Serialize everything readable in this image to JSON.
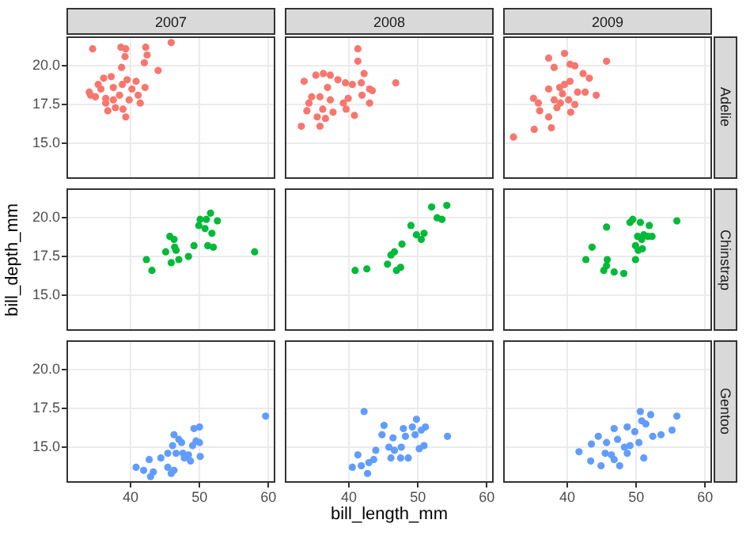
{
  "chart_data": [
    {
      "type": "scatter",
      "title": "2007",
      "marker": "circle",
      "color": "#f8766d",
      "grid": true,
      "tick_labels": "y",
      "xlim": [
        30.7,
        61
      ],
      "ylim": [
        12.7,
        21.9
      ],
      "xticks": [
        40,
        50,
        60
      ],
      "yticks": [
        {
          "value": 15,
          "label": "15.0"
        },
        {
          "value": 17.5,
          "label": "17.5"
        },
        {
          "value": 20,
          "label": "20.0"
        }
      ],
      "x": [
        34.5,
        38.6,
        39.3,
        39.2,
        38.7,
        42.2,
        42.4,
        42.0,
        45.9,
        44.0,
        34.0,
        34.2,
        35.3,
        36.1,
        37.2,
        35.7,
        36.4,
        37.5,
        36.7,
        37.8,
        38.9,
        39.3,
        38.4,
        39.8,
        38.8,
        40.2,
        40.8,
        41.1,
        42.1,
        41.4,
        36.4,
        37.5,
        39.5,
        34.9
      ],
      "values": [
        21.1,
        21.2,
        21.1,
        20.6,
        19.9,
        21.2,
        20.7,
        20.2,
        21.5,
        19.7,
        18.3,
        18.1,
        18.8,
        19.2,
        19.3,
        18.5,
        17.9,
        18.6,
        17.1,
        17.3,
        17.2,
        16.7,
        18.1,
        17.8,
        18.8,
        18.5,
        19.0,
        18.1,
        18.6,
        17.6,
        17.6,
        17.8,
        19.1,
        18.0
      ]
    },
    {
      "type": "scatter",
      "title": "2008",
      "marker": "circle",
      "color": "#f8766d",
      "grid": true,
      "tick_labels": false,
      "xlim": [
        30.7,
        61
      ],
      "ylim": [
        12.7,
        21.9
      ],
      "xticks": [
        40,
        50,
        60
      ],
      "yticks": [
        15,
        17.5,
        20
      ],
      "x": [
        41.3,
        41.3,
        33.5,
        35.2,
        36.3,
        37.3,
        38.4,
        36.9,
        39.5,
        40.5,
        41.8,
        42.2,
        46.8,
        43.0,
        43.4,
        41.9,
        39.9,
        34.6,
        35.8,
        34.2,
        37.3,
        39.2,
        39.6,
        37.7,
        36.2,
        33.9,
        35.4,
        35.8,
        33.1,
        40.8,
        43.0,
        36.6
      ],
      "values": [
        21.1,
        20.3,
        19.0,
        19.4,
        19.5,
        19.4,
        19.1,
        18.6,
        18.9,
        18.8,
        18.9,
        19.5,
        18.9,
        18.5,
        18.4,
        18.1,
        17.9,
        18.0,
        18.0,
        17.6,
        17.8,
        17.6,
        17.2,
        17.0,
        17.2,
        17.1,
        16.7,
        16.1,
        16.1,
        16.8,
        17.6,
        16.6
      ]
    },
    {
      "type": "scatter",
      "title": "2009",
      "y2label": "Adelie",
      "marker": "circle",
      "color": "#f8766d",
      "grid": true,
      "tick_labels": false,
      "xlim": [
        30.7,
        61
      ],
      "ylim": [
        12.7,
        21.9
      ],
      "xticks": [
        40,
        50,
        60
      ],
      "yticks": [
        15,
        17.5,
        20
      ],
      "x": [
        37.3,
        39.6,
        38.1,
        40.4,
        41.1,
        45.7,
        42.3,
        43.2,
        44.2,
        40.4,
        39.6,
        38.9,
        37.3,
        35.1,
        35.8,
        36.0,
        37.3,
        38.1,
        39.0,
        40.2,
        40.5,
        41.1,
        41.5,
        42.6,
        37.7,
        35.2,
        32.2,
        38.5,
        39.3
      ],
      "values": [
        20.5,
        20.8,
        19.9,
        20.1,
        20.0,
        20.3,
        19.5,
        19.2,
        18.1,
        19.0,
        18.8,
        18.6,
        18.5,
        17.9,
        17.6,
        17.1,
        16.7,
        17.8,
        17.6,
        17.8,
        17.0,
        17.5,
        18.3,
        18.3,
        16.0,
        15.9,
        15.4,
        17.3,
        18.2
      ]
    },
    {
      "type": "scatter",
      "ylabel": "bill_depth_mm",
      "marker": "circle",
      "color": "#00ba38",
      "grid": true,
      "tick_labels": "y",
      "xlim": [
        30.7,
        61
      ],
      "ylim": [
        12.7,
        21.9
      ],
      "xticks": [
        40,
        50,
        60
      ],
      "yticks": [
        {
          "value": 15,
          "label": "15.0"
        },
        {
          "value": 17.5,
          "label": "17.5"
        },
        {
          "value": 20,
          "label": "20.0"
        }
      ],
      "x": [
        42.3,
        43.1,
        45.7,
        46.3,
        45.1,
        45.9,
        46.6,
        47.0,
        48.4,
        49.2,
        50.1,
        51.0,
        51.6,
        52.6,
        49.9,
        50.8,
        51.8,
        51.2,
        52.0,
        58.0,
        46.4
      ],
      "values": [
        17.3,
        16.6,
        18.8,
        18.6,
        17.8,
        17.1,
        17.9,
        17.3,
        17.5,
        18.2,
        19.9,
        19.9,
        20.3,
        19.8,
        19.5,
        19.3,
        19.0,
        18.2,
        18.1,
        17.8,
        18.1
      ]
    },
    {
      "type": "scatter",
      "marker": "circle",
      "color": "#00ba38",
      "grid": true,
      "tick_labels": false,
      "xlim": [
        30.7,
        61
      ],
      "ylim": [
        12.7,
        21.9
      ],
      "xticks": [
        40,
        50,
        60
      ],
      "yticks": [
        15,
        17.5,
        20
      ],
      "x": [
        40.9,
        42.6,
        45.6,
        46.1,
        46.6,
        47.7,
        46.9,
        47.5,
        49.0,
        49.8,
        50.9,
        50.5,
        52.0,
        52.8,
        53.5,
        54.2
      ],
      "values": [
        16.6,
        16.7,
        17.0,
        17.6,
        17.8,
        18.3,
        16.6,
        16.8,
        19.5,
        18.9,
        19.0,
        18.6,
        20.7,
        20.0,
        19.9,
        20.8
      ]
    },
    {
      "type": "scatter",
      "y2label": "Chinstrap",
      "marker": "circle",
      "color": "#00ba38",
      "grid": true,
      "tick_labels": false,
      "xlim": [
        30.7,
        61
      ],
      "ylim": [
        12.7,
        21.9
      ],
      "xticks": [
        40,
        50,
        60
      ],
      "yticks": [
        15,
        17.5,
        20
      ],
      "x": [
        42.7,
        43.6,
        45.7,
        45.8,
        45.7,
        45.3,
        46.8,
        48.2,
        49.1,
        49.5,
        50.6,
        51.9,
        49.9,
        49.9,
        50.2,
        50.8,
        51.1,
        51.7,
        52.3,
        50.3,
        50.9,
        55.9
      ],
      "values": [
        17.3,
        18.1,
        19.4,
        17.3,
        16.9,
        16.6,
        16.5,
        16.4,
        19.7,
        19.9,
        19.7,
        19.5,
        18.2,
        17.3,
        18.8,
        18.6,
        18.9,
        18.8,
        18.8,
        17.9,
        18.0,
        19.8
      ]
    },
    {
      "type": "scatter",
      "marker": "circle",
      "color": "#619cff",
      "grid": true,
      "xlim": [
        30.7,
        61
      ],
      "ylim": [
        12.7,
        21.9
      ],
      "xticks": [
        40,
        50,
        60
      ],
      "yticks": [
        {
          "value": 15,
          "label": "15.0"
        },
        {
          "value": 17.5,
          "label": "17.5"
        },
        {
          "value": 20,
          "label": "20.0"
        }
      ],
      "x": [
        40.8,
        41.9,
        42.7,
        42.9,
        43.3,
        44.4,
        45.4,
        45.4,
        45.9,
        46.1,
        46.3,
        47.0,
        47.4,
        47.6,
        47.8,
        48.4,
        48.7,
        49.0,
        49.2,
        49.5,
        50.0,
        50.0,
        50.1,
        46.3,
        59.6,
        46.6
      ],
      "values": [
        13.7,
        13.5,
        14.2,
        13.1,
        13.4,
        14.3,
        14.6,
        13.7,
        13.3,
        15.1,
        15.8,
        15.5,
        15.3,
        14.6,
        14.3,
        14.5,
        14.1,
        15.1,
        16.2,
        15.4,
        16.3,
        15.3,
        14.4,
        13.5,
        17.0,
        14.6
      ]
    },
    {
      "type": "scatter",
      "xlabel": "bill_length_mm",
      "marker": "circle",
      "color": "#619cff",
      "grid": true,
      "tick_labels": "x",
      "xlim": [
        30.7,
        61
      ],
      "ylim": [
        12.7,
        21.9
      ],
      "xticks": [
        40,
        50,
        60
      ],
      "yticks": [
        15,
        17.5,
        20
      ],
      "x": [
        42.2,
        40.5,
        41.3,
        41.8,
        42.7,
        42.9,
        43.6,
        43.9,
        44.8,
        45.1,
        45.8,
        46.1,
        46.4,
        46.6,
        47.5,
        48.6,
        47.6,
        48.2,
        49.2,
        49.6,
        49.8,
        50.5,
        50.9,
        50.2,
        51.1,
        54.3,
        47.9
      ],
      "values": [
        17.3,
        13.7,
        14.5,
        13.8,
        13.3,
        14.0,
        14.2,
        14.8,
        15.8,
        16.4,
        15.0,
        14.3,
        15.6,
        14.8,
        14.3,
        14.3,
        15.0,
        15.7,
        16.3,
        15.8,
        16.8,
        16.1,
        15.1,
        14.9,
        16.3,
        15.7,
        16.2
      ]
    },
    {
      "type": "scatter",
      "y2label": "Gentoo",
      "marker": "circle",
      "color": "#619cff",
      "grid": true,
      "tick_labels": "x",
      "xlim": [
        30.7,
        61
      ],
      "ylim": [
        12.7,
        21.9
      ],
      "xticks": [
        40,
        50,
        60
      ],
      "yticks": [
        15,
        17.5,
        20
      ],
      "x": [
        41.7,
        43.4,
        43.5,
        44.5,
        44.9,
        45.5,
        46.4,
        46.8,
        47.3,
        47.6,
        48.3,
        48.7,
        49.1,
        48.7,
        49.8,
        50.4,
        50.8,
        50.6,
        51.4,
        52.1,
        51.1,
        52.4,
        53.6,
        55.2,
        55.9,
        46.8,
        45.7
      ],
      "values": [
        14.7,
        14.1,
        15.2,
        15.7,
        13.8,
        14.6,
        14.5,
        16.2,
        15.5,
        13.8,
        15.0,
        14.6,
        15.1,
        16.3,
        16.0,
        15.3,
        16.7,
        17.3,
        16.5,
        17.1,
        14.3,
        15.7,
        15.8,
        16.1,
        17.0,
        14.2,
        15.3
      ]
    }
  ]
}
